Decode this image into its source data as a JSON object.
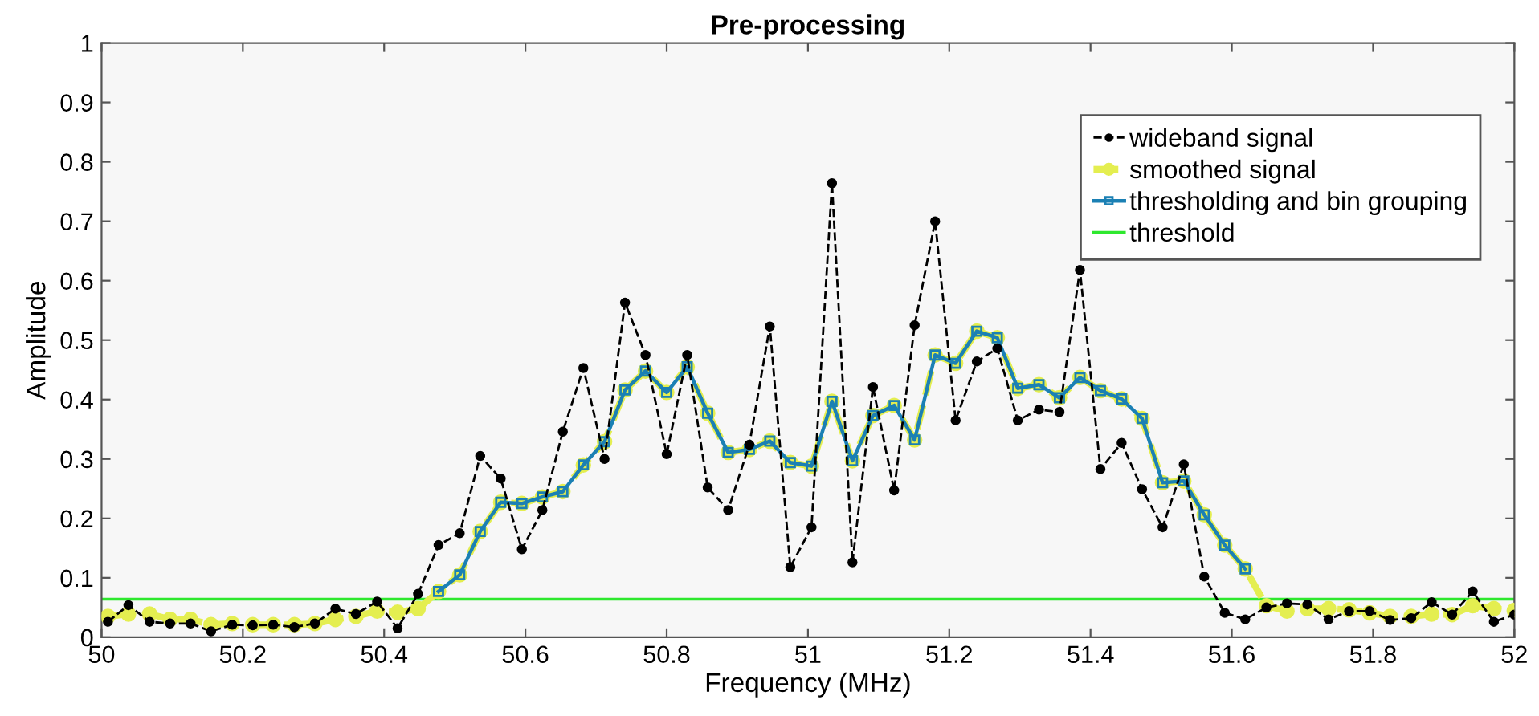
{
  "chart_data": {
    "type": "line",
    "title": "Pre-processing",
    "xlabel": "Frequency (MHz)",
    "ylabel": "Amplitude",
    "x": [
      50.009,
      50.038,
      50.068,
      50.097,
      50.126,
      50.155,
      50.185,
      50.214,
      50.243,
      50.273,
      50.302,
      50.331,
      50.36,
      50.39,
      50.419,
      50.448,
      50.477,
      50.507,
      50.536,
      50.565,
      50.595,
      50.624,
      50.653,
      50.682,
      50.712,
      50.741,
      50.77,
      50.8,
      50.829,
      50.858,
      50.887,
      50.917,
      50.946,
      50.975,
      51.005,
      51.034,
      51.063,
      51.092,
      51.122,
      51.151,
      51.18,
      51.209,
      51.239,
      51.268,
      51.297,
      51.327,
      51.356,
      51.385,
      51.414,
      51.444,
      51.473,
      51.502,
      51.532,
      51.561,
      51.59,
      51.619,
      51.649,
      51.678,
      51.707,
      51.737,
      51.766,
      51.795,
      51.824,
      51.854,
      51.883,
      51.912,
      51.941,
      51.971,
      52.0
    ],
    "series": [
      {
        "name": "wideband signal",
        "color": "#000000",
        "line_style": "dashed",
        "marker": "circle",
        "values": [
          0.026,
          0.054,
          0.026,
          0.023,
          0.023,
          0.01,
          0.021,
          0.02,
          0.021,
          0.017,
          0.023,
          0.048,
          0.039,
          0.06,
          0.015,
          0.073,
          0.155,
          0.175,
          0.305,
          0.267,
          0.148,
          0.214,
          0.346,
          0.453,
          0.3,
          0.563,
          0.475,
          0.308,
          0.475,
          0.252,
          0.214,
          0.324,
          0.523,
          0.118,
          0.185,
          0.764,
          0.126,
          0.421,
          0.247,
          0.525,
          0.7,
          0.365,
          0.464,
          0.486,
          0.365,
          0.383,
          0.379,
          0.618,
          0.283,
          0.327,
          0.249,
          0.185,
          0.291,
          0.102,
          0.041,
          0.03,
          0.05,
          0.057,
          0.055,
          0.03,
          0.044,
          0.044,
          0.029,
          0.032,
          0.059,
          0.038,
          0.077,
          0.026,
          0.038
        ]
      },
      {
        "name": "smoothed signal",
        "color": "#e4ee50",
        "line_style": "dashed",
        "marker": "circle",
        "values": [
          0.035,
          0.039,
          0.039,
          0.03,
          0.03,
          0.021,
          0.023,
          0.021,
          0.021,
          0.021,
          0.023,
          0.03,
          0.035,
          0.044,
          0.042,
          0.048,
          0.077,
          0.105,
          0.178,
          0.227,
          0.225,
          0.236,
          0.245,
          0.29,
          0.329,
          0.416,
          0.448,
          0.412,
          0.455,
          0.377,
          0.311,
          0.316,
          0.33,
          0.294,
          0.288,
          0.397,
          0.297,
          0.373,
          0.39,
          0.332,
          0.475,
          0.461,
          0.515,
          0.504,
          0.419,
          0.425,
          0.403,
          0.437,
          0.415,
          0.401,
          0.368,
          0.26,
          0.263,
          0.206,
          0.155,
          0.115,
          0.053,
          0.044,
          0.048,
          0.048,
          0.046,
          0.041,
          0.035,
          0.035,
          0.039,
          0.038,
          0.053,
          0.048,
          0.045
        ]
      },
      {
        "name": "thresholding and bin grouping",
        "color": "#1b80b4",
        "line_style": "solid",
        "marker": "square",
        "values": [
          null,
          null,
          null,
          null,
          null,
          null,
          null,
          null,
          null,
          null,
          null,
          null,
          null,
          null,
          null,
          null,
          0.077,
          0.105,
          0.178,
          0.227,
          0.225,
          0.236,
          0.245,
          0.29,
          0.329,
          0.416,
          0.448,
          0.412,
          0.455,
          0.377,
          0.311,
          0.316,
          0.33,
          0.294,
          0.288,
          0.397,
          0.297,
          0.373,
          0.39,
          0.332,
          0.475,
          0.461,
          0.515,
          0.504,
          0.419,
          0.425,
          0.403,
          0.437,
          0.415,
          0.401,
          0.368,
          0.26,
          0.263,
          0.206,
          0.155,
          0.115,
          null,
          null,
          null,
          null,
          null,
          null,
          null,
          null,
          null,
          null,
          null,
          null,
          null
        ]
      }
    ],
    "ref_lines": [
      {
        "axis": "y",
        "value": 0.064,
        "label": "threshold",
        "color": "#2ee82e",
        "line_style": "solid"
      }
    ],
    "xlim": [
      50,
      52
    ],
    "xticks": [
      50,
      50.2,
      50.4,
      50.6,
      50.8,
      51,
      51.2,
      51.4,
      51.6,
      51.8,
      52
    ],
    "ylim": [
      0,
      1
    ],
    "yticks": [
      0,
      0.1,
      0.2,
      0.3,
      0.4,
      0.5,
      0.6,
      0.7,
      0.8,
      0.9,
      1
    ],
    "grid": false,
    "legend": "top right"
  }
}
